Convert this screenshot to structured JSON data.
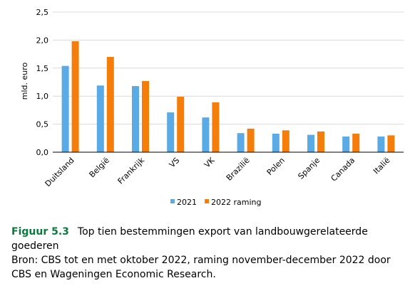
{
  "chart_data": {
    "type": "bar",
    "categories": [
      "Duitsland",
      "België",
      "Frankrijk",
      "VS",
      "VK",
      "Brazilië",
      "Polen",
      "Spanje",
      "Canada",
      "Italië"
    ],
    "series": [
      {
        "name": "2021",
        "values": [
          1.54,
          1.19,
          1.18,
          0.71,
          0.62,
          0.34,
          0.33,
          0.31,
          0.28,
          0.28
        ]
      },
      {
        "name": "2022 raming",
        "values": [
          1.98,
          1.7,
          1.27,
          0.99,
          0.89,
          0.42,
          0.39,
          0.37,
          0.33,
          0.3
        ]
      }
    ],
    "ylabel": "mld. euro",
    "ylim": [
      0,
      2.5
    ],
    "yticks": [
      "0,0",
      "0,5",
      "1,0",
      "1,5",
      "2,0",
      "2,5"
    ],
    "grid": true,
    "legend_position": "bottom",
    "colors": {
      "series_0": "#5aaae6",
      "series_1": "#f57d0a",
      "grid": "#d9d9d9",
      "axis": "#000000"
    }
  },
  "caption": {
    "figure_label": "Figuur 5.3",
    "title": "Top tien bestemmingen export van landbouwgerelateerde goederen",
    "source": "Bron: CBS tot en met oktober 2022, raming november-december 2022 door CBS en Wageningen Economic Research."
  }
}
